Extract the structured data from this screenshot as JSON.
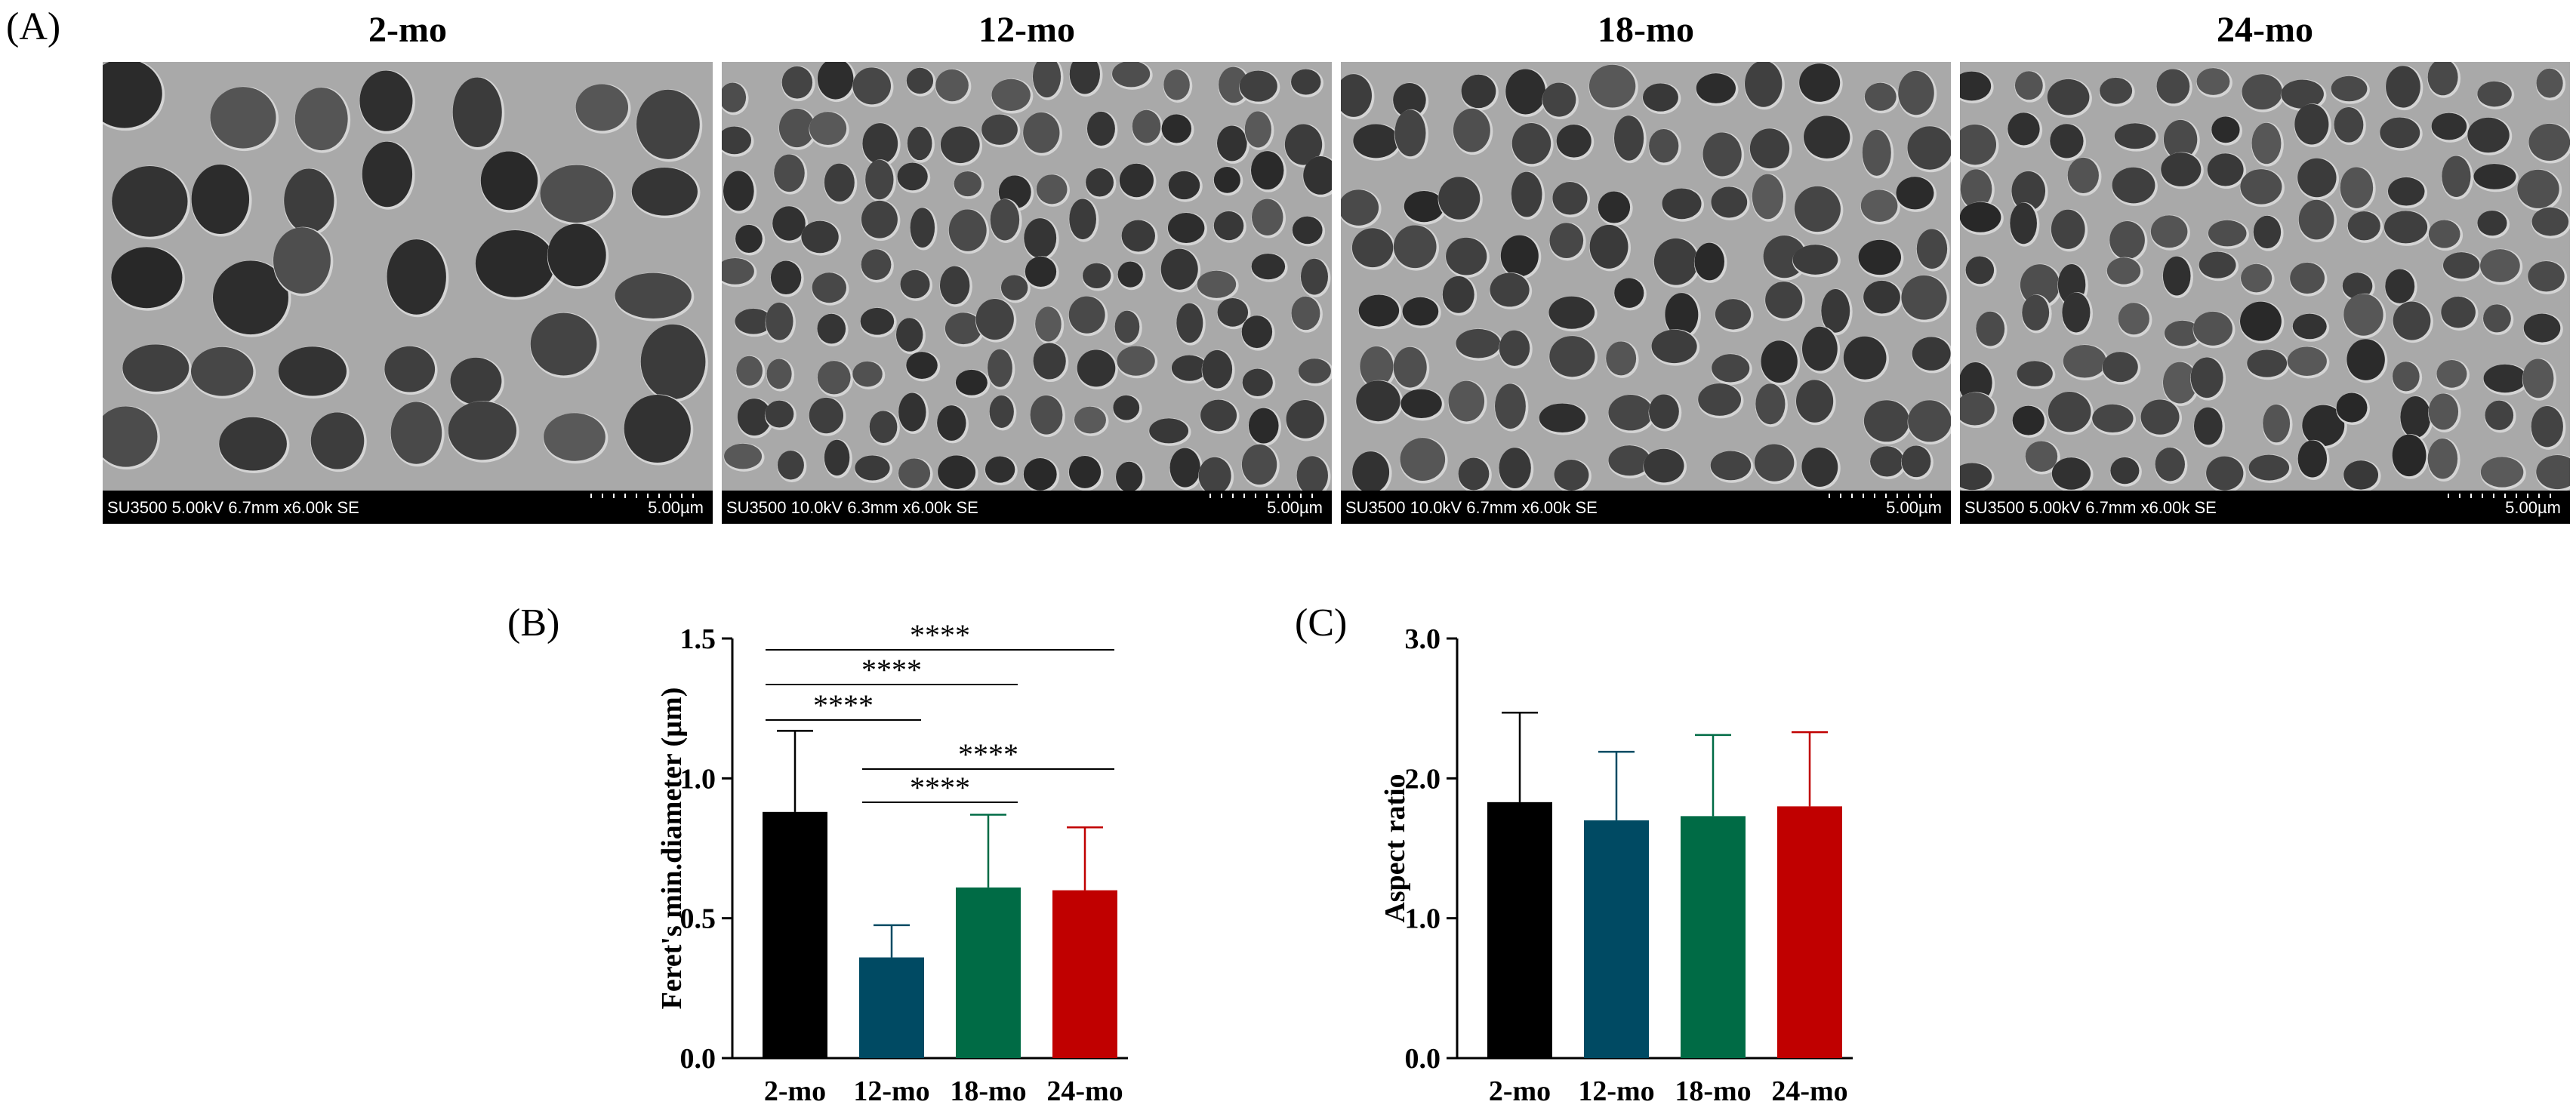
{
  "panel_a": {
    "label": "(A)",
    "images": [
      {
        "title": "2-mo",
        "info": "SU3500 5.00kV 6.7mm x6.00k SE",
        "scale": "5.00µm",
        "density": 38
      },
      {
        "title": "12-mo",
        "info": "SU3500 10.0kV 6.3mm x6.00k SE",
        "scale": "5.00µm",
        "density": 130
      },
      {
        "title": "18-mo",
        "info": "SU3500 10.0kV 6.7mm x6.00k SE",
        "scale": "5.00µm",
        "density": 100
      },
      {
        "title": "24-mo",
        "info": "SU3500 5.00kV 6.7mm x6.00k SE",
        "scale": "5.00µm",
        "density": 115
      }
    ]
  },
  "panel_b": {
    "label": "(B)"
  },
  "panel_c": {
    "label": "(C)"
  },
  "chart_data": [
    {
      "type": "bar",
      "ylabel": "Feret's min.diameter (µm)",
      "xlabel": "",
      "categories": [
        "2-mo",
        "12-mo",
        "18-mo",
        "24-mo"
      ],
      "values": [
        0.88,
        0.36,
        0.61,
        0.6
      ],
      "errors": [
        0.29,
        0.115,
        0.26,
        0.225
      ],
      "colors": [
        "#000000",
        "#004a63",
        "#006b45",
        "#c00000"
      ],
      "ylim": [
        0,
        1.5
      ],
      "yticks": [
        "0.0",
        "0.5",
        "1.0",
        "1.5"
      ],
      "significance": [
        {
          "from": 0,
          "to": 3,
          "label": "****"
        },
        {
          "from": 0,
          "to": 2,
          "label": "****"
        },
        {
          "from": 0,
          "to": 1,
          "label": "****"
        },
        {
          "from": 1,
          "to": 3,
          "label": "****"
        },
        {
          "from": 1,
          "to": 2,
          "label": "****"
        }
      ]
    },
    {
      "type": "bar",
      "ylabel": "Aspect ratio",
      "xlabel": "",
      "categories": [
        "2-mo",
        "12-mo",
        "18-mo",
        "24-mo"
      ],
      "values": [
        1.83,
        1.7,
        1.73,
        1.8
      ],
      "errors": [
        0.64,
        0.49,
        0.58,
        0.53
      ],
      "colors": [
        "#000000",
        "#004a63",
        "#006b45",
        "#c00000"
      ],
      "ylim": [
        0,
        3
      ],
      "yticks": [
        "0.0",
        "1.0",
        "2.0",
        "3.0"
      ]
    }
  ]
}
